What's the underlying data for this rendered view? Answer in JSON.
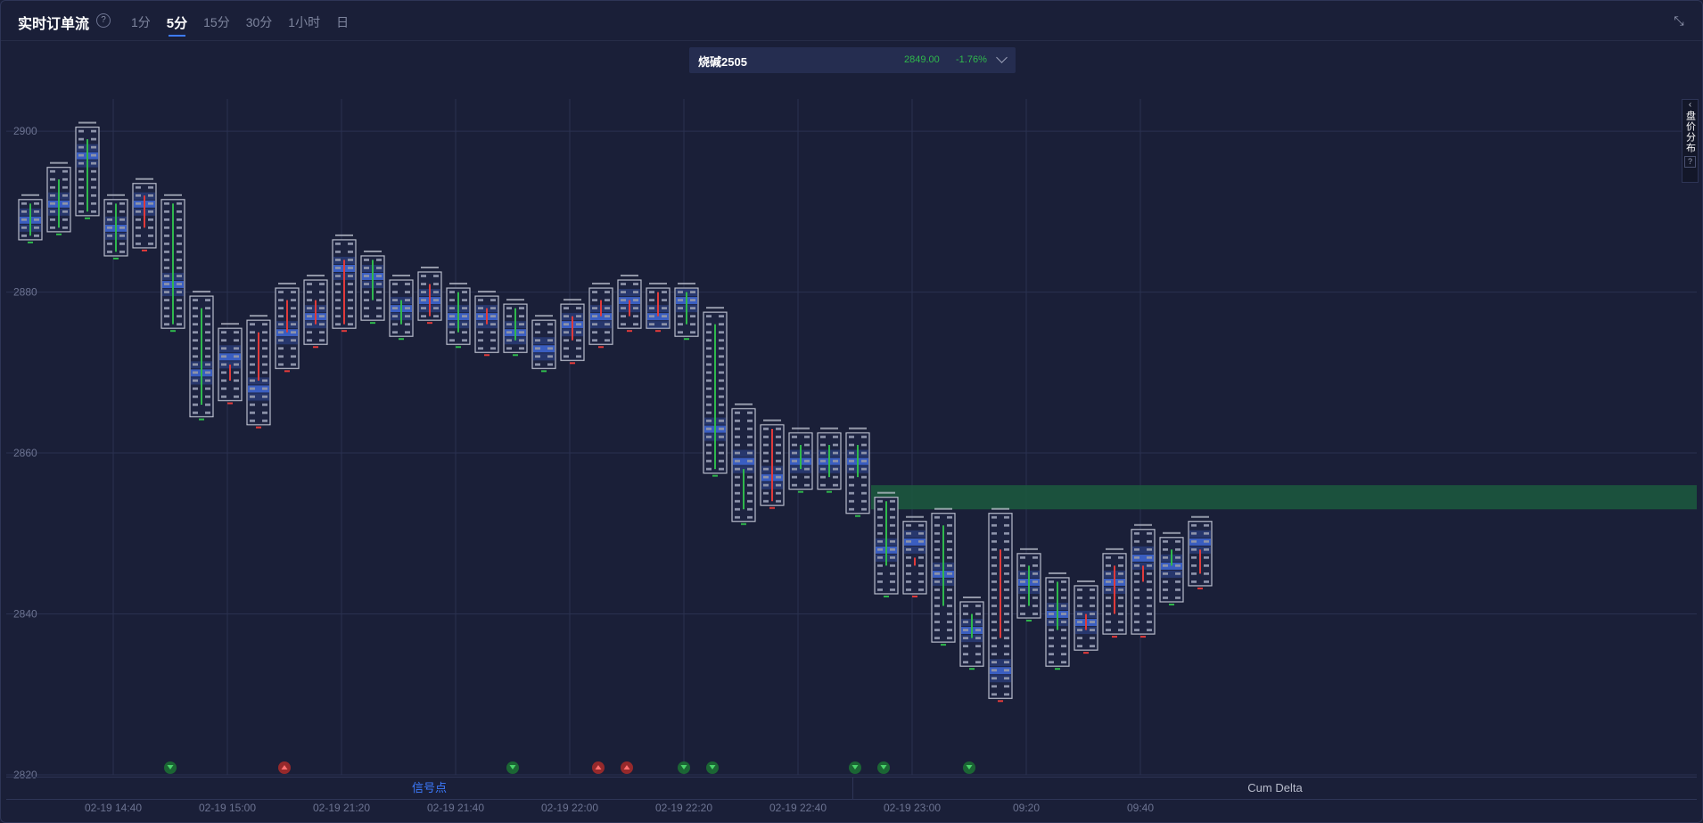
{
  "header": {
    "title": "实时订单流",
    "help": "?",
    "tabs": [
      {
        "label": "1分",
        "active": false
      },
      {
        "label": "5分",
        "active": true
      },
      {
        "label": "15分",
        "active": false
      },
      {
        "label": "30分",
        "active": false
      },
      {
        "label": "1小时",
        "active": false
      },
      {
        "label": "日",
        "active": false
      }
    ],
    "collapse_icon": "collapse-arrows-icon"
  },
  "symbol": {
    "name": "烧碱2505",
    "price": "2849.00",
    "change": "-1.76%",
    "chevron_icon": "chevron-down-icon"
  },
  "side_panel": {
    "label": "盘价分布",
    "help": "?",
    "chevron_icon": "chevron-left-icon"
  },
  "bottom_tabs": {
    "signal": "信号点",
    "cum_delta": "Cum Delta"
  },
  "colors": {
    "background": "#1a1f38",
    "grid": "#2a3150",
    "up": "#2fb84c",
    "down": "#e03a3a",
    "poc": "#3f68d8",
    "zone": "#1c5a3e"
  },
  "chart_data": {
    "type": "footprint",
    "ylim": [
      2820,
      2904
    ],
    "yticks": [
      2820,
      2840,
      2860,
      2880,
      2900
    ],
    "x_tick_labels": [
      {
        "label": "02-19 14:40",
        "bar": 3
      },
      {
        "label": "02-19 15:00",
        "bar": 7
      },
      {
        "label": "02-19 21:20",
        "bar": 11
      },
      {
        "label": "02-19 21:40",
        "bar": 15
      },
      {
        "label": "02-19 22:00",
        "bar": 19
      },
      {
        "label": "02-19 22:20",
        "bar": 23
      },
      {
        "label": "02-19 22:40",
        "bar": 27
      },
      {
        "label": "02-19 23:00",
        "bar": 31
      },
      {
        "label": "09:20",
        "bar": 35
      },
      {
        "label": "09:40",
        "bar": 39
      }
    ],
    "bars": [
      {
        "open": 2887,
        "close": 2891,
        "high": 2891,
        "low": 2887,
        "poc": 2889,
        "delta": "up"
      },
      {
        "open": 2888,
        "close": 2894,
        "high": 2895,
        "low": 2888,
        "poc": 2891,
        "delta": "up"
      },
      {
        "open": 2890,
        "close": 2899,
        "high": 2900,
        "low": 2890,
        "poc": 2897,
        "delta": "up"
      },
      {
        "open": 2891,
        "close": 2885,
        "high": 2891,
        "low": 2885,
        "poc": 2888,
        "delta": "up"
      },
      {
        "open": 2888,
        "close": 2892,
        "high": 2893,
        "low": 2886,
        "poc": 2891,
        "delta": "down"
      },
      {
        "open": 2891,
        "close": 2876,
        "high": 2891,
        "low": 2876,
        "poc": 2881,
        "delta": "up"
      },
      {
        "open": 2878,
        "close": 2866,
        "high": 2879,
        "low": 2865,
        "poc": 2870,
        "delta": "up"
      },
      {
        "open": 2871,
        "close": 2869,
        "high": 2875,
        "low": 2867,
        "poc": 2872,
        "delta": "down"
      },
      {
        "open": 2869,
        "close": 2875,
        "high": 2876,
        "low": 2864,
        "poc": 2868,
        "delta": "down"
      },
      {
        "open": 2875,
        "close": 2879,
        "high": 2880,
        "low": 2871,
        "poc": 2875,
        "delta": "down"
      },
      {
        "open": 2879,
        "close": 2876,
        "high": 2881,
        "low": 2874,
        "poc": 2877,
        "delta": "down"
      },
      {
        "open": 2876,
        "close": 2884,
        "high": 2886,
        "low": 2876,
        "poc": 2883,
        "delta": "down"
      },
      {
        "open": 2884,
        "close": 2879,
        "high": 2884,
        "low": 2877,
        "poc": 2882,
        "delta": "up"
      },
      {
        "open": 2879,
        "close": 2876,
        "high": 2881,
        "low": 2875,
        "poc": 2878,
        "delta": "up"
      },
      {
        "open": 2877,
        "close": 2881,
        "high": 2882,
        "low": 2877,
        "poc": 2879,
        "delta": "down"
      },
      {
        "open": 2880,
        "close": 2875,
        "high": 2880,
        "low": 2874,
        "poc": 2877,
        "delta": "up"
      },
      {
        "open": 2876,
        "close": 2878,
        "high": 2879,
        "low": 2873,
        "poc": 2877,
        "delta": "down"
      },
      {
        "open": 2878,
        "close": 2874,
        "high": 2878,
        "low": 2873,
        "poc": 2875,
        "delta": "up"
      },
      {
        "open": 2874,
        "close": 2874,
        "high": 2876,
        "low": 2871,
        "poc": 2873,
        "delta": "up"
      },
      {
        "open": 2874,
        "close": 2877,
        "high": 2878,
        "low": 2872,
        "poc": 2876,
        "delta": "down"
      },
      {
        "open": 2877,
        "close": 2879,
        "high": 2880,
        "low": 2874,
        "poc": 2877,
        "delta": "down"
      },
      {
        "open": 2879,
        "close": 2877,
        "high": 2881,
        "low": 2876,
        "poc": 2879,
        "delta": "down"
      },
      {
        "open": 2877,
        "close": 2880,
        "high": 2880,
        "low": 2876,
        "poc": 2877,
        "delta": "down"
      },
      {
        "open": 2880,
        "close": 2876,
        "high": 2880,
        "low": 2875,
        "poc": 2879,
        "delta": "up"
      },
      {
        "open": 2876,
        "close": 2858,
        "high": 2877,
        "low": 2858,
        "poc": 2863,
        "delta": "up"
      },
      {
        "open": 2858,
        "close": 2853,
        "high": 2865,
        "low": 2852,
        "poc": 2859,
        "delta": "up"
      },
      {
        "open": 2863,
        "close": 2854,
        "high": 2863,
        "low": 2854,
        "poc": 2857,
        "delta": "down"
      },
      {
        "open": 2858,
        "close": 2861,
        "high": 2862,
        "low": 2856,
        "poc": 2859,
        "delta": "up"
      },
      {
        "open": 2861,
        "close": 2857,
        "high": 2862,
        "low": 2856,
        "poc": 2859,
        "delta": "up"
      },
      {
        "open": 2857,
        "close": 2861,
        "high": 2862,
        "low": 2853,
        "poc": 2859,
        "delta": "up"
      },
      {
        "open": 2854,
        "close": 2846,
        "high": 2854,
        "low": 2843,
        "poc": 2848,
        "delta": "up"
      },
      {
        "open": 2846,
        "close": 2847,
        "high": 2851,
        "low": 2843,
        "poc": 2849,
        "delta": "down"
      },
      {
        "open": 2851,
        "close": 2841,
        "high": 2852,
        "low": 2837,
        "poc": 2845,
        "delta": "up"
      },
      {
        "open": 2840,
        "close": 2837,
        "high": 2841,
        "low": 2834,
        "poc": 2838,
        "delta": "up"
      },
      {
        "open": 2837,
        "close": 2848,
        "high": 2852,
        "low": 2830,
        "poc": 2833,
        "delta": "down"
      },
      {
        "open": 2846,
        "close": 2841,
        "high": 2847,
        "low": 2840,
        "poc": 2844,
        "delta": "up"
      },
      {
        "open": 2844,
        "close": 2838,
        "high": 2844,
        "low": 2834,
        "poc": 2840,
        "delta": "up"
      },
      {
        "open": 2838,
        "close": 2840,
        "high": 2843,
        "low": 2836,
        "poc": 2839,
        "delta": "down"
      },
      {
        "open": 2840,
        "close": 2846,
        "high": 2847,
        "low": 2838,
        "poc": 2844,
        "delta": "down"
      },
      {
        "open": 2846,
        "close": 2844,
        "high": 2850,
        "low": 2838,
        "poc": 2847,
        "delta": "down"
      },
      {
        "open": 2846,
        "close": 2848,
        "high": 2849,
        "low": 2842,
        "poc": 2846,
        "delta": "up"
      },
      {
        "open": 2848,
        "close": 2845,
        "high": 2851,
        "low": 2844,
        "poc": 2849,
        "delta": "down"
      }
    ],
    "signals": [
      {
        "bar": 5,
        "type": "buy"
      },
      {
        "bar": 9,
        "type": "sell"
      },
      {
        "bar": 17,
        "type": "buy"
      },
      {
        "bar": 20,
        "type": "sell"
      },
      {
        "bar": 21,
        "type": "sell"
      },
      {
        "bar": 23,
        "type": "buy"
      },
      {
        "bar": 24,
        "type": "buy"
      },
      {
        "bar": 29,
        "type": "buy"
      },
      {
        "bar": 30,
        "type": "buy"
      },
      {
        "bar": 33,
        "type": "buy"
      }
    ],
    "zone": {
      "from": 2853,
      "to": 2856,
      "start_bar": 30
    }
  }
}
